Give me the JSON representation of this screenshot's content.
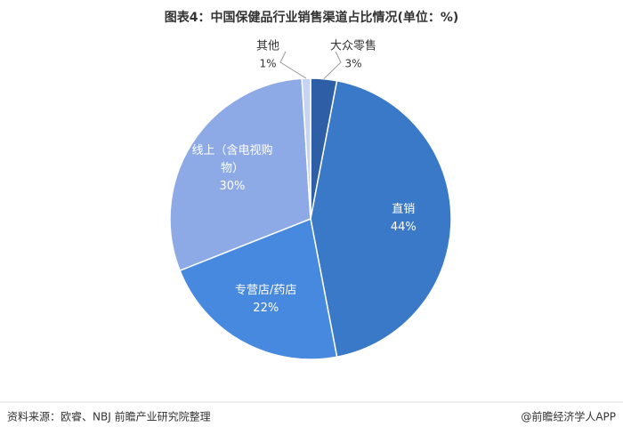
{
  "chart_data": {
    "type": "pie",
    "title": "图表4：中国保健品行业销售渠道占比情况(单位：%)",
    "categories": [
      "大众零售",
      "直销",
      "专营店/药店",
      "线上（含电视购物）",
      "其他"
    ],
    "values": [
      3,
      44,
      22,
      30,
      1
    ],
    "value_labels": [
      "3%",
      "44%",
      "22%",
      "30%",
      "1%"
    ],
    "colors": [
      "#2d5ea6",
      "#3a78c8",
      "#4889e0",
      "#8daae6",
      "#c6d4f1"
    ],
    "source": "资料来源：欧睿、NBJ 前瞻产业研究院整理",
    "credit": "@前瞻经济学人APP"
  }
}
